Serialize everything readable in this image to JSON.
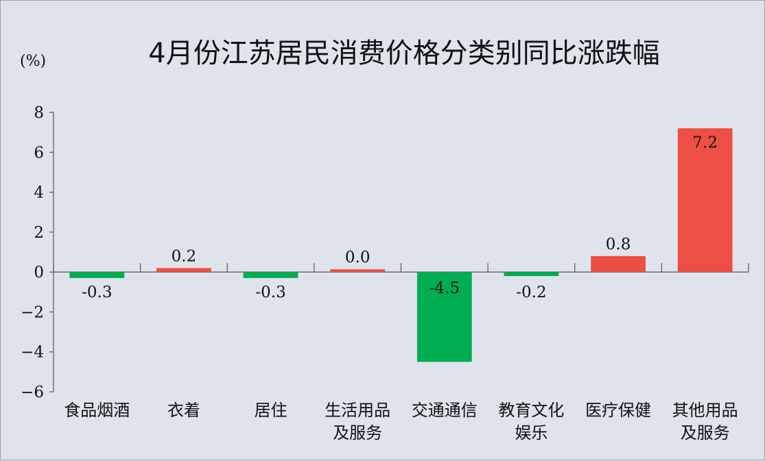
{
  "chart_data": {
    "type": "bar",
    "title": "4月份江苏居民消费价格分类别同比涨跌幅",
    "unit_label": "(%)",
    "categories": [
      [
        "食品烟酒"
      ],
      [
        "衣着"
      ],
      [
        "居住"
      ],
      [
        "生活用品",
        "及服务"
      ],
      [
        "交通通信"
      ],
      [
        "教育文化",
        "娱乐"
      ],
      [
        "医疗保健"
      ],
      [
        "其他用品",
        "及服务"
      ]
    ],
    "values": [
      -0.3,
      0.2,
      -0.3,
      0.0,
      -4.5,
      -0.2,
      0.8,
      7.2
    ],
    "data_labels": [
      "-0.3",
      "0.2",
      "-0.3",
      "0.0",
      "-4.5",
      "-0.2",
      "0.8",
      "7.2"
    ],
    "ylim": [
      -6,
      8
    ],
    "yticks": [
      8,
      6,
      4,
      2,
      0,
      -2,
      -4,
      -6
    ],
    "ytick_labels": [
      "8",
      "6",
      "4",
      "2",
      "0",
      "−2",
      "−4",
      "−6"
    ],
    "grid": false,
    "colors": {
      "positive": "#ed4f45",
      "negative": "#00ad50",
      "axis": "#555555",
      "background": "#dfe3ec"
    }
  }
}
